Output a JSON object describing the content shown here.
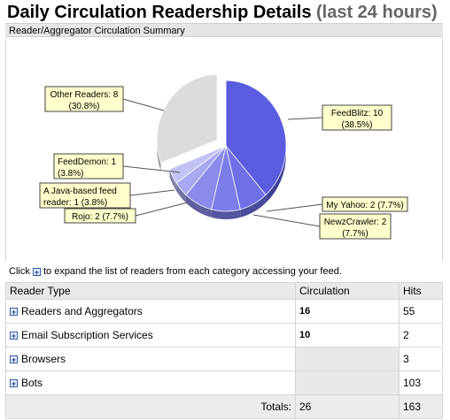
{
  "header": {
    "title": "Daily Circulation Readership Details",
    "title_suffix": "(last 24 hours)",
    "subtitle": "Reader/Aggregator Circulation Summary"
  },
  "chart_data": {
    "type": "pie",
    "title": "",
    "slices": [
      {
        "label": "FeedBlitz: 10",
        "pct": "(38.5%)",
        "value": 10,
        "color": "#5c5ce0"
      },
      {
        "label": "My Yahoo: 2",
        "pct": "(7.7%)",
        "value": 2,
        "color": "#6f6fe6"
      },
      {
        "label": "NewzCrawler: 2",
        "pct": "(7.7%)",
        "value": 2,
        "color": "#7d7dea"
      },
      {
        "label": "Rojo: 2",
        "pct": "(7.7%)",
        "value": 2,
        "color": "#8b8bec"
      },
      {
        "label": "A Java-based feed reader: 1",
        "pct": "(3.8%)",
        "value": 1,
        "color": "#a8a8f0"
      },
      {
        "label": "FeedDemon: 1",
        "pct": "(3.8%)",
        "value": 1,
        "color": "#c2c2f4"
      },
      {
        "label": "Other Readers: 8",
        "pct": "(30.8%)",
        "value": 8,
        "color": "#dcdcdc",
        "exploded": true
      }
    ],
    "label_lines": {
      "feedblitz": [
        "FeedBlitz: 10",
        "(38.5%)"
      ],
      "myyahoo": [
        "My Yahoo: 2 (7.7%)"
      ],
      "newzcrawler": [
        "NewzCrawler: 2",
        "(7.7%)"
      ],
      "rojo": [
        "Rojo: 2 (7.7%)"
      ],
      "javareader": [
        "A Java-based feed",
        "reader: 1  (3.8%)"
      ],
      "feeddemon": [
        "FeedDemon: 1",
        "(3.8%)"
      ],
      "other": [
        "Other Readers: 8",
        "(30.8%)"
      ]
    }
  },
  "hint": {
    "prefix": "Click",
    "suffix": "to expand the list of readers from each category accessing your feed."
  },
  "table": {
    "columns": [
      "Reader Type",
      "Circulation",
      "Hits"
    ],
    "rows": [
      {
        "type": "Readers and Aggregators",
        "circulation": "16",
        "hits": "55"
      },
      {
        "type": "Email Subscription Services",
        "circulation": "10",
        "hits": "2"
      },
      {
        "type": "Browsers",
        "circulation": "",
        "hits": "3"
      },
      {
        "type": "Bots",
        "circulation": "",
        "hits": "103"
      }
    ],
    "totals": {
      "label": "Totals:",
      "circulation": "26",
      "hits": "163"
    }
  },
  "icons": {
    "expand": "plus-box-icon"
  }
}
